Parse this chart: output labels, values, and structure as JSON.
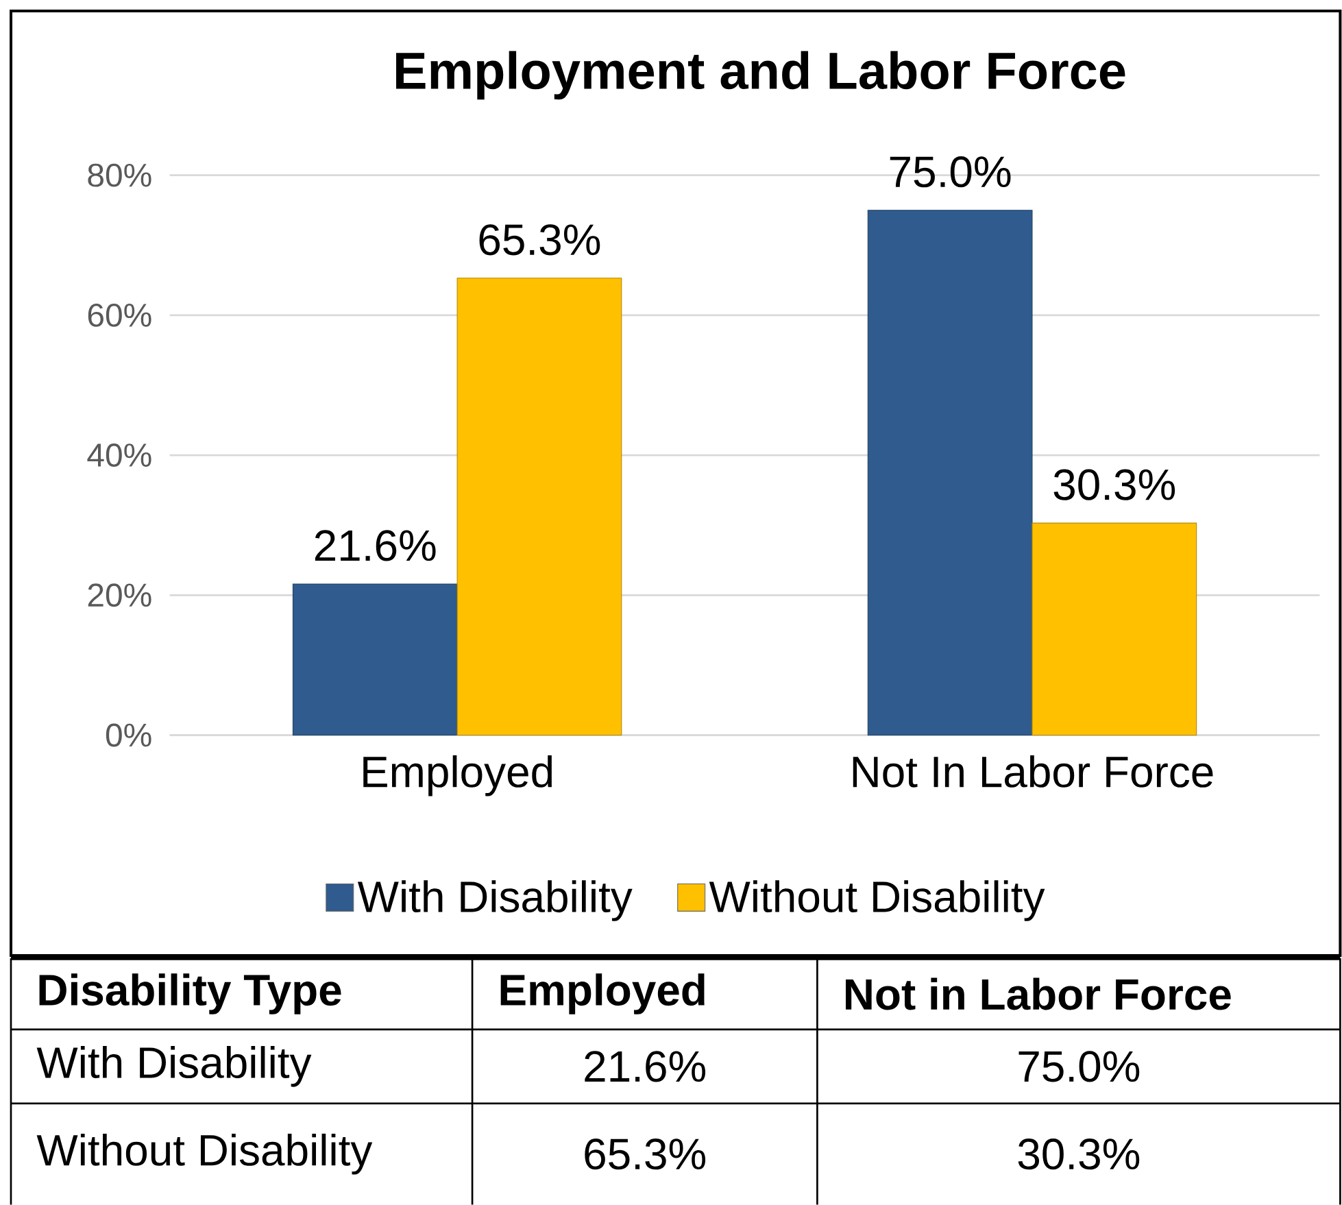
{
  "chart_data": {
    "type": "bar",
    "title": "Employment and Labor Force",
    "categories": [
      "Employed",
      "Not In Labor Force"
    ],
    "series": [
      {
        "name": "With Disability",
        "color": "#2f5b8e",
        "values": [
          21.6,
          75.0
        ],
        "value_labels": [
          "21.6%",
          "75.0%"
        ]
      },
      {
        "name": "Without Disability",
        "color": "#ffc000",
        "values": [
          65.3,
          30.3
        ],
        "value_labels": [
          "65.3%",
          "30.3%"
        ]
      }
    ],
    "ylim": [
      0,
      80
    ],
    "yticks": [
      {
        "value": 0,
        "label": "0%"
      },
      {
        "value": 20,
        "label": "20%"
      },
      {
        "value": 40,
        "label": "40%"
      },
      {
        "value": 60,
        "label": "60%"
      },
      {
        "value": 80,
        "label": "80%"
      }
    ],
    "grid": "y",
    "legend": "bottom",
    "annotations": [
      "Disability Type",
      "Employed",
      "Not in Labor Force"
    ]
  }
}
